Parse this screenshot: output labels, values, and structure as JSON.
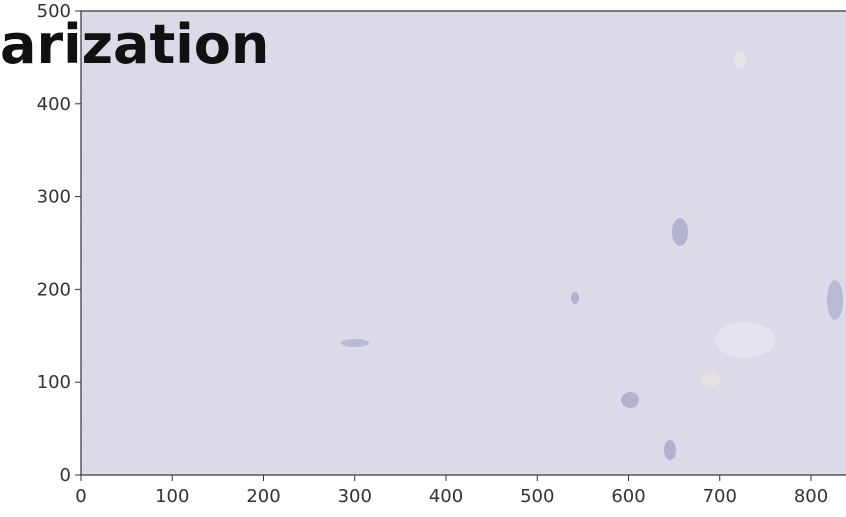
{
  "chart_data": {
    "type": "image",
    "title": "arization",
    "xlim": [
      0,
      840
    ],
    "ylim": [
      0,
      500
    ],
    "xticks": [
      0,
      100,
      200,
      300,
      400,
      500,
      600,
      700,
      800
    ],
    "yticks": [
      0,
      100,
      200,
      300,
      400,
      500
    ],
    "color": "#dcdcea"
  }
}
